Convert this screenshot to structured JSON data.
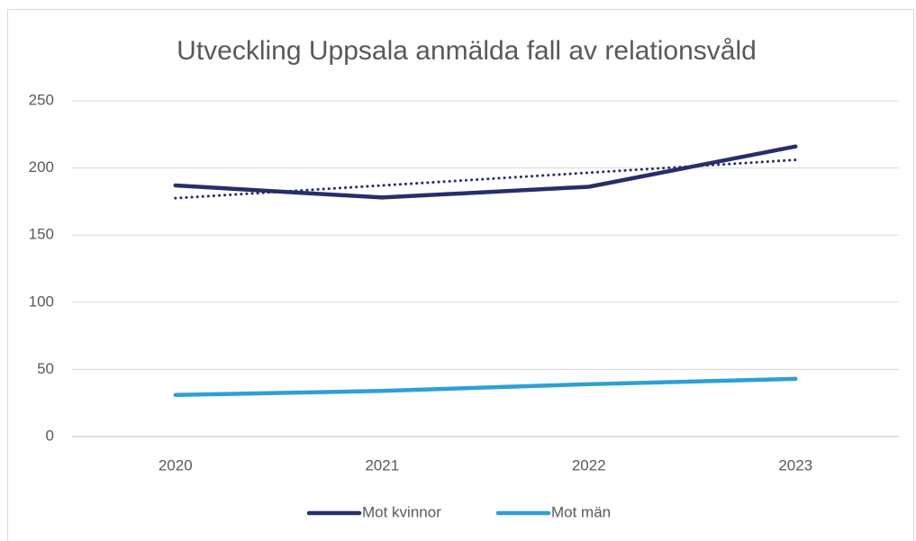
{
  "chart_data": {
    "type": "line",
    "title": "Utveckling Uppsala anmälda fall av relationsvåld",
    "categories": [
      "2020",
      "2021",
      "2022",
      "2023"
    ],
    "series": [
      {
        "name": "Mot kvinnor",
        "color": "#262e6b",
        "values": [
          187,
          178,
          186,
          216
        ],
        "trendline": true
      },
      {
        "name": "Mot män",
        "color": "#2e9fd8",
        "values": [
          31,
          34,
          39,
          43
        ]
      }
    ],
    "ylim": [
      0,
      250
    ],
    "yticks": [
      0,
      50,
      100,
      150,
      200,
      250
    ],
    "grid": true,
    "legend": "bottom"
  }
}
